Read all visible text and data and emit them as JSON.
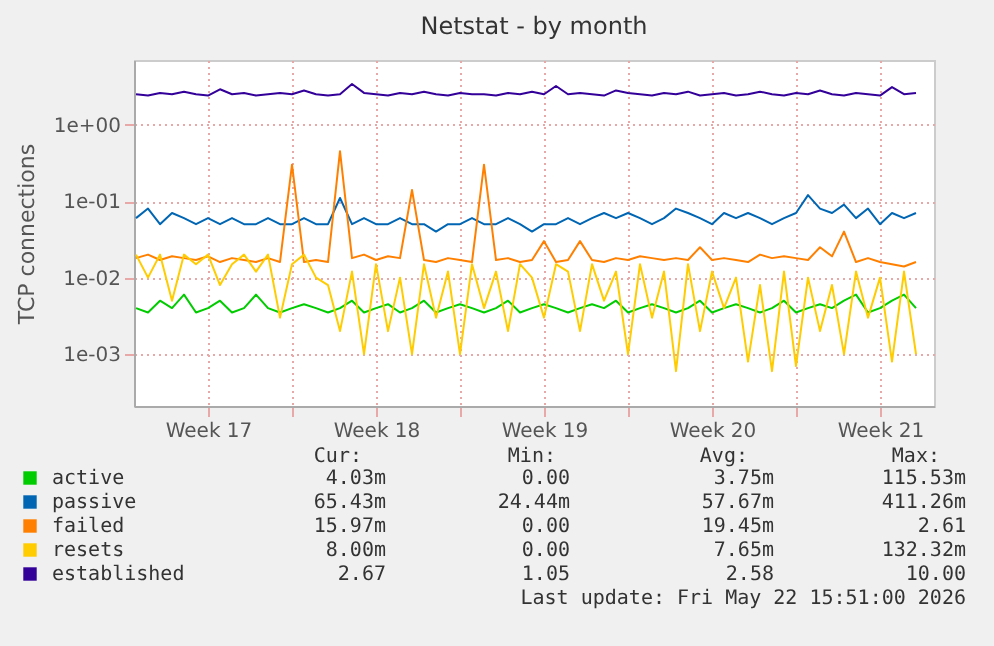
{
  "chart_data": {
    "type": "line",
    "title": "Netstat - by month",
    "ylabel": "TCP connections",
    "log": "y",
    "grid": true,
    "legend": "bottom",
    "line_style": "solid",
    "marker": "none",
    "x": [
      "2026-04-20T12:00",
      "2026-04-21T00:00",
      "2026-04-21T12:00",
      "2026-04-22T00:00",
      "2026-04-22T12:00",
      "2026-04-23T00:00",
      "2026-04-23T12:00",
      "2026-04-24T00:00",
      "2026-04-24T12:00",
      "2026-04-25T00:00",
      "2026-04-25T12:00",
      "2026-04-26T00:00",
      "2026-04-26T12:00",
      "2026-04-27T00:00",
      "2026-04-27T12:00",
      "2026-04-28T00:00",
      "2026-04-28T12:00",
      "2026-04-29T00:00",
      "2026-04-29T12:00",
      "2026-04-30T00:00",
      "2026-04-30T12:00",
      "2026-05-01T00:00",
      "2026-05-01T12:00",
      "2026-05-02T00:00",
      "2026-05-02T12:00",
      "2026-05-03T00:00",
      "2026-05-03T12:00",
      "2026-05-04T00:00",
      "2026-05-04T12:00",
      "2026-05-05T00:00",
      "2026-05-05T12:00",
      "2026-05-06T00:00",
      "2026-05-06T12:00",
      "2026-05-07T00:00",
      "2026-05-07T12:00",
      "2026-05-08T00:00",
      "2026-05-08T12:00",
      "2026-05-09T00:00",
      "2026-05-09T12:00",
      "2026-05-10T00:00",
      "2026-05-10T12:00",
      "2026-05-11T00:00",
      "2026-05-11T12:00",
      "2026-05-12T00:00",
      "2026-05-12T12:00",
      "2026-05-13T00:00",
      "2026-05-13T12:00",
      "2026-05-14T00:00",
      "2026-05-14T12:00",
      "2026-05-15T00:00",
      "2026-05-15T12:00",
      "2026-05-16T00:00",
      "2026-05-16T12:00",
      "2026-05-17T00:00",
      "2026-05-17T12:00",
      "2026-05-18T00:00",
      "2026-05-18T12:00",
      "2026-05-19T00:00",
      "2026-05-19T12:00",
      "2026-05-20T00:00",
      "2026-05-20T12:00",
      "2026-05-21T00:00",
      "2026-05-21T12:00",
      "2026-05-22T00:00",
      "2026-05-22T12:00",
      "2026-05-23T00:00"
    ],
    "xlim": [
      "2026-04-20T10:00",
      "2026-05-23T18:00"
    ],
    "xticks": [
      {
        "value": "2026-04-23T12:00",
        "label": "Week 17"
      },
      {
        "value": "2026-04-27T00:00",
        "label": null
      },
      {
        "value": "2026-04-30T12:00",
        "label": "Week 18"
      },
      {
        "value": "2026-05-04T00:00",
        "label": null
      },
      {
        "value": "2026-05-07T12:00",
        "label": "Week 19"
      },
      {
        "value": "2026-05-11T00:00",
        "label": null
      },
      {
        "value": "2026-05-14T12:00",
        "label": "Week 20"
      },
      {
        "value": "2026-05-18T00:00",
        "label": null
      },
      {
        "value": "2026-05-21T12:00",
        "label": "Week 21"
      }
    ],
    "ylim": [
      0.00021,
      7
    ],
    "yticks": [
      {
        "value": 1,
        "label": "1e+00"
      },
      {
        "value": 0.1,
        "label": "1e-01"
      },
      {
        "value": 0.01,
        "label": "1e-02"
      },
      {
        "value": 0.001,
        "label": "1e-03"
      }
    ],
    "series": [
      {
        "name": "active",
        "color": "#00cc00",
        "values": [
          0.004,
          0.0035,
          0.005,
          0.004,
          0.006,
          0.0035,
          0.004,
          0.005,
          0.0035,
          0.004,
          0.006,
          0.004,
          0.0035,
          0.004,
          0.0045,
          0.004,
          0.0035,
          0.004,
          0.005,
          0.0035,
          0.004,
          0.0045,
          0.0035,
          0.004,
          0.005,
          0.0035,
          0.004,
          0.0045,
          0.004,
          0.0035,
          0.004,
          0.005,
          0.0035,
          0.004,
          0.0045,
          0.004,
          0.0035,
          0.004,
          0.0045,
          0.004,
          0.005,
          0.0035,
          0.004,
          0.0045,
          0.004,
          0.0035,
          0.004,
          0.005,
          0.0035,
          0.004,
          0.0045,
          0.004,
          0.0035,
          0.004,
          0.005,
          0.0035,
          0.004,
          0.0045,
          0.004,
          0.005,
          0.006,
          0.0035,
          0.004,
          0.005,
          0.006,
          0.004
        ]
      },
      {
        "name": "passive",
        "color": "#0066b3",
        "values": [
          0.06,
          0.08,
          0.05,
          0.07,
          0.06,
          0.05,
          0.06,
          0.05,
          0.06,
          0.05,
          0.05,
          0.06,
          0.05,
          0.05,
          0.06,
          0.05,
          0.05,
          0.11,
          0.05,
          0.06,
          0.05,
          0.05,
          0.06,
          0.05,
          0.05,
          0.04,
          0.05,
          0.05,
          0.06,
          0.05,
          0.05,
          0.06,
          0.05,
          0.04,
          0.05,
          0.05,
          0.06,
          0.05,
          0.06,
          0.07,
          0.06,
          0.07,
          0.06,
          0.05,
          0.06,
          0.08,
          0.07,
          0.06,
          0.05,
          0.07,
          0.06,
          0.07,
          0.06,
          0.05,
          0.06,
          0.07,
          0.12,
          0.08,
          0.07,
          0.09,
          0.06,
          0.08,
          0.05,
          0.07,
          0.06,
          0.07
        ]
      },
      {
        "name": "failed",
        "color": "#ff8000",
        "values": [
          0.018,
          0.02,
          0.017,
          0.019,
          0.018,
          0.017,
          0.019,
          0.016,
          0.018,
          0.017,
          0.016,
          0.018,
          0.016,
          0.3,
          0.016,
          0.017,
          0.016,
          0.45,
          0.018,
          0.02,
          0.017,
          0.019,
          0.018,
          0.14,
          0.017,
          0.016,
          0.018,
          0.017,
          0.016,
          0.3,
          0.017,
          0.018,
          0.016,
          0.017,
          0.03,
          0.016,
          0.017,
          0.03,
          0.017,
          0.016,
          0.018,
          0.017,
          0.019,
          0.018,
          0.017,
          0.018,
          0.017,
          0.025,
          0.017,
          0.018,
          0.017,
          0.016,
          0.02,
          0.018,
          0.019,
          0.018,
          0.017,
          0.025,
          0.019,
          0.04,
          0.016,
          0.018,
          0.016,
          0.015,
          0.014,
          0.016
        ]
      },
      {
        "name": "resets",
        "color": "#ffcc00",
        "values": [
          0.02,
          0.01,
          0.02,
          0.005,
          0.02,
          0.015,
          0.02,
          0.008,
          0.015,
          0.02,
          0.012,
          0.02,
          0.003,
          0.015,
          0.02,
          0.01,
          0.008,
          0.002,
          0.012,
          0.001,
          0.015,
          0.002,
          0.01,
          0.001,
          0.015,
          0.003,
          0.012,
          0.001,
          0.015,
          0.004,
          0.012,
          0.002,
          0.015,
          0.01,
          0.003,
          0.015,
          0.012,
          0.002,
          0.015,
          0.005,
          0.012,
          0.001,
          0.015,
          0.003,
          0.012,
          0.0006,
          0.015,
          0.002,
          0.012,
          0.004,
          0.01,
          0.0008,
          0.008,
          0.0006,
          0.012,
          0.0007,
          0.01,
          0.002,
          0.008,
          0.001,
          0.012,
          0.003,
          0.01,
          0.0008,
          0.012,
          0.001
        ]
      },
      {
        "name": "established",
        "color": "#330099",
        "values": [
          2.5,
          2.4,
          2.6,
          2.5,
          2.7,
          2.5,
          2.4,
          2.9,
          2.5,
          2.6,
          2.4,
          2.5,
          2.6,
          2.5,
          2.8,
          2.5,
          2.4,
          2.5,
          3.4,
          2.6,
          2.5,
          2.4,
          2.6,
          2.5,
          2.7,
          2.5,
          2.4,
          2.6,
          2.5,
          2.5,
          2.4,
          2.6,
          2.5,
          2.7,
          2.5,
          3.2,
          2.5,
          2.6,
          2.5,
          2.4,
          2.8,
          2.6,
          2.5,
          2.4,
          2.6,
          2.5,
          2.7,
          2.4,
          2.5,
          2.6,
          2.4,
          2.5,
          2.7,
          2.5,
          2.4,
          2.6,
          2.5,
          2.8,
          2.5,
          2.4,
          2.6,
          2.5,
          2.4,
          3.1,
          2.5,
          2.6
        ]
      }
    ],
    "annotations": [
      "Cur:",
      "Min:",
      "Avg:",
      "Max:",
      "4.03m",
      "0.00",
      "3.75m",
      "115.53m",
      "65.43m",
      "24.44m",
      "57.67m",
      "411.26m",
      "15.97m",
      "0.00",
      "19.45m",
      "2.61",
      "8.00m",
      "0.00",
      "7.65m",
      "132.32m",
      "2.67",
      "1.05",
      "2.58",
      "10.00",
      "Last update: Fri May 22 15:51:00 2026"
    ]
  }
}
